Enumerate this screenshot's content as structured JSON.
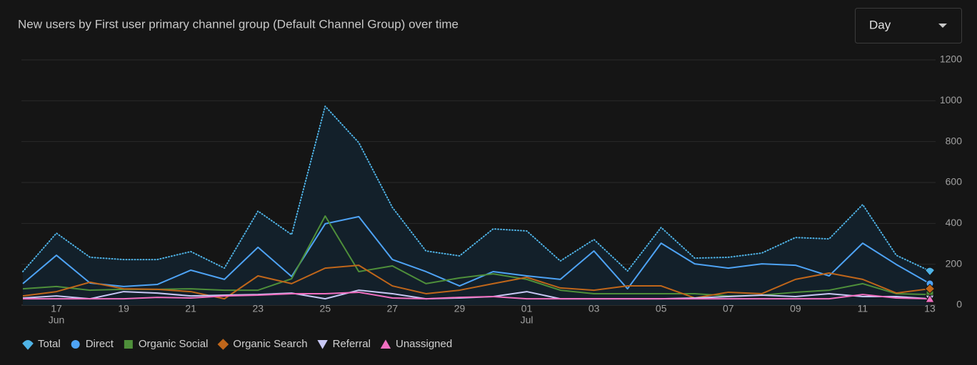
{
  "dropdown": {
    "label": "Day"
  },
  "chart_data": {
    "type": "line",
    "title": "New users by First user primary channel group (Default Channel Group) over time",
    "categories": [
      null,
      "17",
      null,
      "19",
      null,
      "21",
      null,
      "23",
      null,
      "25",
      null,
      "27",
      null,
      "29",
      null,
      "01",
      null,
      "03",
      null,
      "05",
      null,
      "07",
      null,
      "09",
      null,
      "11",
      null,
      "13"
    ],
    "category_months": [
      null,
      "Jun",
      null,
      null,
      null,
      null,
      null,
      null,
      null,
      null,
      null,
      null,
      null,
      null,
      null,
      "Jul",
      null,
      null,
      null,
      null,
      null,
      null,
      null,
      null,
      null,
      null,
      null,
      null
    ],
    "ylim": [
      0,
      1200
    ],
    "yticks": [
      0,
      200,
      400,
      600,
      800,
      1000,
      1200
    ],
    "grid": true,
    "y_axis_side": "right",
    "series": [
      {
        "name": "Total",
        "color": "#4fb3e6",
        "style": "dotted",
        "area": true,
        "marker": "drop",
        "values": [
          164,
          352,
          234,
          223,
          223,
          262,
          181,
          460,
          345,
          973,
          795,
          478,
          265,
          241,
          373,
          363,
          216,
          321,
          167,
          380,
          230,
          234,
          255,
          331,
          324,
          492,
          244,
          167
        ]
      },
      {
        "name": "Direct",
        "color": "#4ea3f5",
        "marker": "circle",
        "values": [
          105,
          244,
          108,
          91,
          101,
          171,
          126,
          283,
          140,
          398,
          433,
          223,
          164,
          94,
          164,
          143,
          126,
          265,
          80,
          303,
          202,
          181,
          202,
          195,
          143,
          303,
          199,
          105
        ]
      },
      {
        "name": "Organic Social",
        "color": "#4e8f3a",
        "marker": "square",
        "values": [
          80,
          91,
          73,
          77,
          77,
          80,
          73,
          73,
          129,
          436,
          164,
          192,
          105,
          133,
          153,
          126,
          73,
          56,
          56,
          56,
          56,
          45,
          49,
          63,
          73,
          105,
          56,
          52
        ]
      },
      {
        "name": "Organic Search",
        "color": "#c0661a",
        "marker": "diamond",
        "values": [
          45,
          66,
          112,
          80,
          77,
          66,
          31,
          143,
          105,
          181,
          195,
          94,
          56,
          73,
          105,
          136,
          84,
          73,
          94,
          94,
          35,
          63,
          56,
          126,
          157,
          126,
          59,
          80
        ]
      },
      {
        "name": "Referral",
        "color": "#c8c8f5",
        "marker": "triangle-down",
        "values": [
          35,
          45,
          31,
          66,
          59,
          45,
          49,
          52,
          59,
          31,
          73,
          56,
          31,
          35,
          42,
          66,
          31,
          31,
          31,
          31,
          35,
          42,
          49,
          42,
          56,
          42,
          42,
          31
        ]
      },
      {
        "name": "Unassigned",
        "color": "#f06fc0",
        "marker": "triangle-up",
        "values": [
          31,
          31,
          31,
          31,
          38,
          35,
          45,
          49,
          56,
          56,
          63,
          35,
          31,
          38,
          42,
          31,
          31,
          31,
          31,
          31,
          31,
          31,
          31,
          31,
          31,
          52,
          35,
          31
        ]
      }
    ]
  }
}
